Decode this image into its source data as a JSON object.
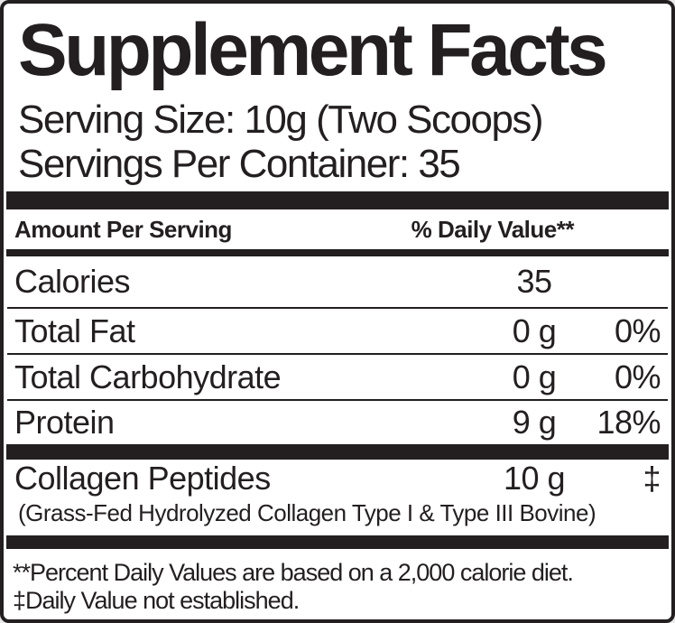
{
  "label": {
    "title": "Supplement Facts",
    "serving_size": "Serving Size: 10g (Two Scoops)",
    "servings_per_container": "Servings Per Container: 35",
    "header": {
      "amount_label": "Amount Per Serving",
      "daily_value_label": "% Daily Value**"
    },
    "rows": [
      {
        "name": "Calories",
        "amount": "35",
        "dv": ""
      },
      {
        "name": "Total Fat",
        "amount": "0 g",
        "dv": "0%"
      },
      {
        "name": "Total Carbohydrate",
        "amount": "0 g",
        "dv": "0%"
      },
      {
        "name": "Protein",
        "amount": "9 g",
        "dv": "18%"
      }
    ],
    "supplement": {
      "name": "Collagen Peptides",
      "amount": "10 g",
      "dv": "‡",
      "description": "(Grass-Fed Hydrolyzed Collagen Type I & Type III Bovine)"
    },
    "footnotes": [
      "**Percent Daily Values are based on a 2,000 calorie diet.",
      "‡Daily Value not established."
    ],
    "colors": {
      "ink": "#231f20",
      "background": "#ffffff"
    }
  }
}
